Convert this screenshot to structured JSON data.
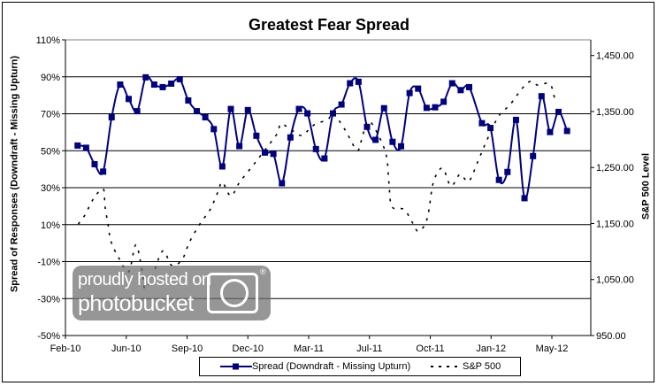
{
  "chart_data": {
    "type": "line",
    "title": "Greatest Fear Spread",
    "ylabel": "Spread of Responses (Downdraft - Missing Upturn)",
    "y2label": "S&P 500 Level",
    "xlim": [
      "2010-02-22",
      "2012-07-05"
    ],
    "x_major_unit_days": 100,
    "x_tick_labels": [
      "Feb-10",
      "Jun-10",
      "Sep-10",
      "Dec-10",
      "Mar-11",
      "Jul-11",
      "Oct-11",
      "Jan-12",
      "May-12"
    ],
    "ylim": [
      -50,
      110
    ],
    "y_tick_labels": [
      "110%",
      "90%",
      "70%",
      "50%",
      "30%",
      "10%",
      "-10%",
      "-30%",
      "-50%"
    ],
    "y_ticks": [
      110,
      90,
      70,
      50,
      30,
      10,
      -10,
      -30,
      -50
    ],
    "y2lim": [
      950,
      1478
    ],
    "y2_ticks": [
      1450,
      1350,
      1250,
      1150,
      1050,
      950
    ],
    "y2_tick_labels": [
      "1,450.00",
      "1,350.00",
      "1,250.00",
      "1,150.00",
      "1,050.00",
      "950.00"
    ],
    "grid": true,
    "legend_position": "bottom",
    "series": [
      {
        "name": "Spread (Downdraft - Missing Upturn)",
        "axis": "left",
        "color": "#000080",
        "style": "solid-square-markers",
        "x": [
          "2010-03-14",
          "2010-03-28",
          "2010-04-11",
          "2010-04-25",
          "2010-05-09",
          "2010-05-23",
          "2010-06-06",
          "2010-06-20",
          "2010-07-04",
          "2010-07-18",
          "2010-08-01",
          "2010-08-15",
          "2010-08-29",
          "2010-09-12",
          "2010-09-26",
          "2010-10-10",
          "2010-10-24",
          "2010-11-07",
          "2010-11-21",
          "2010-12-05",
          "2010-12-19",
          "2011-01-02",
          "2011-01-16",
          "2011-01-30",
          "2011-02-13",
          "2011-02-27",
          "2011-03-13",
          "2011-03-27",
          "2011-04-10",
          "2011-04-24",
          "2011-05-08",
          "2011-05-22",
          "2011-06-05",
          "2011-06-19",
          "2011-07-03",
          "2011-07-17",
          "2011-07-31",
          "2011-08-14",
          "2011-08-28",
          "2011-09-11",
          "2011-09-25",
          "2011-10-09",
          "2011-10-23",
          "2011-11-06",
          "2011-11-20",
          "2011-12-04",
          "2011-12-18",
          "2012-01-08",
          "2012-01-22",
          "2012-02-05",
          "2012-02-19",
          "2012-03-04",
          "2012-03-18",
          "2012-04-01",
          "2012-04-15",
          "2012-04-29",
          "2012-05-13",
          "2012-05-27"
        ],
        "values": [
          52.8,
          51.6,
          42.7,
          38.7,
          68.1,
          85.8,
          78.0,
          71.4,
          89.7,
          85.8,
          84.4,
          86.3,
          88.7,
          77.2,
          71.4,
          68.1,
          61.7,
          41.5,
          72.6,
          52.5,
          72.0,
          58.1,
          49.0,
          48.3,
          32.4,
          57.2,
          72.6,
          70.2,
          50.9,
          45.8,
          70.2,
          75.0,
          86.5,
          87.3,
          62.9,
          55.9,
          73.0,
          54.8,
          52.4,
          81.2,
          83.6,
          73.2,
          73.5,
          76.5,
          86.5,
          82.8,
          84.4,
          64.9,
          62.3,
          34.2,
          38.5,
          66.7,
          24.3,
          47.1,
          79.5,
          60.1,
          71.0,
          60.7
        ]
      },
      {
        "name": "S&P 500",
        "axis": "right",
        "color": "#000000",
        "style": "dashed",
        "x": [
          "2010-03-15",
          "2010-03-26",
          "2010-04-09",
          "2010-04-25",
          "2010-04-28",
          "2010-05-03",
          "2010-05-08",
          "2010-05-21",
          "2010-06-06",
          "2010-06-18",
          "2010-06-29",
          "2010-07-03",
          "2010-07-15",
          "2010-08-01",
          "2010-08-16",
          "2010-09-02",
          "2010-09-14",
          "2010-10-01",
          "2010-10-18",
          "2010-10-31",
          "2010-11-07",
          "2010-11-21",
          "2010-12-05",
          "2010-12-24",
          "2011-01-08",
          "2011-01-23",
          "2011-02-06",
          "2011-02-11",
          "2011-02-25",
          "2011-03-17",
          "2011-03-31",
          "2011-04-10",
          "2011-04-30",
          "2011-05-08",
          "2011-05-28",
          "2011-06-16",
          "2011-06-23",
          "2011-07-05",
          "2011-07-22",
          "2011-08-04",
          "2011-08-08",
          "2011-08-13",
          "2011-09-02",
          "2011-09-16",
          "2011-09-26",
          "2011-10-10",
          "2011-10-20",
          "2011-11-04",
          "2011-11-18",
          "2011-12-03",
          "2011-12-17",
          "2012-01-01",
          "2012-01-15",
          "2012-02-04",
          "2012-02-23",
          "2012-03-14",
          "2012-03-28",
          "2012-04-09",
          "2012-04-29",
          "2012-05-08"
        ],
        "values": [
          1149,
          1165,
          1194,
          1212,
          1181,
          1149,
          1118,
          1088,
          1064,
          1112,
          1059,
          1033,
          1056,
          1101,
          1075,
          1086,
          1117,
          1149,
          1175,
          1207,
          1224,
          1199,
          1223,
          1249,
          1270,
          1291,
          1312,
          1328,
          1320,
          1307,
          1320,
          1328,
          1336,
          1347,
          1317,
          1281,
          1296,
          1333,
          1307,
          1270,
          1223,
          1180,
          1175,
          1151,
          1136,
          1159,
          1223,
          1249,
          1217,
          1238,
          1225,
          1260,
          1296,
          1341,
          1362,
          1391,
          1404,
          1397,
          1399,
          1365
        ]
      }
    ]
  },
  "legend": {
    "spread_label": "Spread (Downdraft - Missing Upturn)",
    "sp_label": "S&P 500"
  },
  "watermark": {
    "line1": "proudly hosted on",
    "line2": "photobucket"
  }
}
